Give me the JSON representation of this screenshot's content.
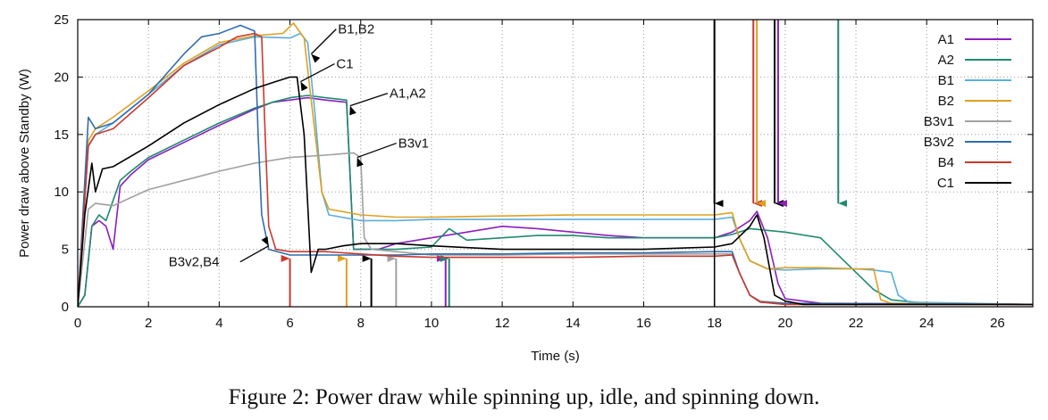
{
  "caption": "Figure 2: Power draw while spinning up, idle, and spinning down.",
  "chart_data": {
    "type": "line",
    "title": "",
    "xlabel": "Time (s)",
    "ylabel": "Power draw above Standby (W)",
    "xlim": [
      0,
      27
    ],
    "ylim": [
      0,
      25
    ],
    "xticks": [
      0,
      2,
      4,
      6,
      8,
      10,
      12,
      14,
      16,
      18,
      20,
      22,
      24,
      26
    ],
    "yticks": [
      0,
      5,
      10,
      15,
      20,
      25
    ],
    "grid": true,
    "legend_position": "top-right",
    "series": [
      {
        "name": "A1",
        "color": "#8b1fbf",
        "points": [
          [
            0,
            0
          ],
          [
            0.2,
            1
          ],
          [
            0.4,
            7
          ],
          [
            0.6,
            7.5
          ],
          [
            0.8,
            7
          ],
          [
            1.0,
            5
          ],
          [
            1.2,
            10.5
          ],
          [
            1.5,
            11.5
          ],
          [
            2,
            12.8
          ],
          [
            3,
            14.3
          ],
          [
            4,
            15.8
          ],
          [
            5,
            17.2
          ],
          [
            5.5,
            17.8
          ],
          [
            6,
            18
          ],
          [
            6.5,
            18.2
          ],
          [
            7,
            18
          ],
          [
            7.6,
            17.8
          ],
          [
            7.8,
            5
          ],
          [
            8.5,
            5
          ],
          [
            9,
            5.5
          ],
          [
            10,
            6
          ],
          [
            11,
            6.5
          ],
          [
            12,
            7
          ],
          [
            13,
            6.8
          ],
          [
            14,
            6.5
          ],
          [
            15,
            6.2
          ],
          [
            16,
            6
          ],
          [
            17,
            6
          ],
          [
            18,
            6
          ],
          [
            18.5,
            6.5
          ],
          [
            19,
            7.5
          ],
          [
            19.2,
            8.3
          ],
          [
            19.5,
            6
          ],
          [
            19.8,
            2
          ],
          [
            20,
            0.7
          ],
          [
            21,
            0.3
          ],
          [
            27,
            0.2
          ]
        ]
      },
      {
        "name": "A2",
        "color": "#1f8a6e",
        "points": [
          [
            0,
            0
          ],
          [
            0.2,
            1
          ],
          [
            0.4,
            7
          ],
          [
            0.6,
            8
          ],
          [
            0.8,
            7.5
          ],
          [
            1.2,
            11
          ],
          [
            1.5,
            11.8
          ],
          [
            2,
            13
          ],
          [
            3,
            14.5
          ],
          [
            4,
            16
          ],
          [
            5,
            17.3
          ],
          [
            5.5,
            17.8
          ],
          [
            6,
            18.2
          ],
          [
            6.5,
            18.4
          ],
          [
            7,
            18.2
          ],
          [
            7.6,
            18
          ],
          [
            7.8,
            5
          ],
          [
            8.5,
            5
          ],
          [
            9,
            5
          ],
          [
            10,
            5.2
          ],
          [
            10.5,
            6.8
          ],
          [
            11,
            5.8
          ],
          [
            12,
            6
          ],
          [
            13,
            6.2
          ],
          [
            14,
            6.2
          ],
          [
            15,
            6
          ],
          [
            16,
            6
          ],
          [
            17,
            6
          ],
          [
            18,
            6
          ],
          [
            18.5,
            6.3
          ],
          [
            19,
            6.8
          ],
          [
            20,
            6.5
          ],
          [
            21,
            6
          ],
          [
            22,
            3
          ],
          [
            22.5,
            1.5
          ],
          [
            23,
            0.6
          ],
          [
            24,
            0.3
          ],
          [
            27,
            0.2
          ]
        ]
      },
      {
        "name": "B1",
        "color": "#5aaedc",
        "points": [
          [
            0,
            0
          ],
          [
            0.3,
            14
          ],
          [
            0.5,
            15
          ],
          [
            1,
            16
          ],
          [
            2,
            18.5
          ],
          [
            3,
            21
          ],
          [
            4,
            22.8
          ],
          [
            5,
            23.5
          ],
          [
            6,
            23.4
          ],
          [
            6.3,
            23.8
          ],
          [
            6.5,
            23
          ],
          [
            6.7,
            17
          ],
          [
            6.9,
            10
          ],
          [
            7.1,
            8
          ],
          [
            8,
            7.5
          ],
          [
            9,
            7.5
          ],
          [
            10,
            7.6
          ],
          [
            12,
            7.6
          ],
          [
            14,
            7.6
          ],
          [
            16,
            7.6
          ],
          [
            18,
            7.6
          ],
          [
            18.5,
            7.8
          ],
          [
            18.7,
            6
          ],
          [
            19,
            4
          ],
          [
            19.5,
            3.3
          ],
          [
            20,
            3.2
          ],
          [
            21,
            3.3
          ],
          [
            22,
            3.3
          ],
          [
            22.5,
            3.2
          ],
          [
            23,
            3
          ],
          [
            23.2,
            1
          ],
          [
            23.5,
            0.4
          ],
          [
            27,
            0.2
          ]
        ]
      },
      {
        "name": "B2",
        "color": "#e0a020",
        "points": [
          [
            0,
            0
          ],
          [
            0.3,
            14.5
          ],
          [
            0.5,
            15.5
          ],
          [
            1,
            16.5
          ],
          [
            2,
            18.8
          ],
          [
            3,
            21.2
          ],
          [
            4,
            23
          ],
          [
            5,
            23.6
          ],
          [
            5.8,
            23.8
          ],
          [
            6.1,
            24.7
          ],
          [
            6.4,
            23.4
          ],
          [
            6.6,
            18
          ],
          [
            6.9,
            10
          ],
          [
            7.1,
            8.5
          ],
          [
            8,
            8
          ],
          [
            9,
            7.8
          ],
          [
            10,
            7.8
          ],
          [
            12,
            7.9
          ],
          [
            14,
            8
          ],
          [
            16,
            8
          ],
          [
            18,
            8
          ],
          [
            18.5,
            8.2
          ],
          [
            18.7,
            6
          ],
          [
            19,
            4
          ],
          [
            19.5,
            3.3
          ],
          [
            20,
            3.4
          ],
          [
            21,
            3.4
          ],
          [
            22,
            3.3
          ],
          [
            22.5,
            3.3
          ],
          [
            22.7,
            0.6
          ],
          [
            23,
            0.3
          ],
          [
            27,
            0.2
          ]
        ]
      },
      {
        "name": "B3v1",
        "color": "#a0a0a0",
        "points": [
          [
            0,
            0
          ],
          [
            0.3,
            8.5
          ],
          [
            0.5,
            9
          ],
          [
            1,
            8.8
          ],
          [
            1.5,
            9.5
          ],
          [
            2,
            10.2
          ],
          [
            3,
            11
          ],
          [
            4,
            11.8
          ],
          [
            5,
            12.5
          ],
          [
            6,
            13
          ],
          [
            7,
            13.2
          ],
          [
            7.8,
            13.4
          ],
          [
            8,
            13
          ],
          [
            8.1,
            6
          ],
          [
            8.3,
            5
          ],
          [
            9,
            4.8
          ],
          [
            10,
            4.5
          ],
          [
            12,
            4.5
          ],
          [
            14,
            4.6
          ],
          [
            16,
            4.6
          ],
          [
            18,
            4.6
          ],
          [
            18.5,
            4.6
          ],
          [
            18.7,
            3
          ],
          [
            19,
            1
          ],
          [
            19.3,
            0.5
          ],
          [
            20,
            0.3
          ],
          [
            27,
            0.2
          ]
        ]
      },
      {
        "name": "B3v2",
        "color": "#2f6db0",
        "points": [
          [
            0,
            0
          ],
          [
            0.3,
            16.5
          ],
          [
            0.5,
            15.5
          ],
          [
            1,
            16
          ],
          [
            2,
            18.5
          ],
          [
            3,
            22
          ],
          [
            3.5,
            23.5
          ],
          [
            4,
            23.8
          ],
          [
            4.6,
            24.5
          ],
          [
            5,
            24
          ],
          [
            5.1,
            15
          ],
          [
            5.2,
            8
          ],
          [
            5.4,
            5
          ],
          [
            6,
            4.5
          ],
          [
            7,
            4.5
          ],
          [
            8,
            4.5
          ],
          [
            9,
            4.5
          ],
          [
            10,
            4.6
          ],
          [
            12,
            4.6
          ],
          [
            14,
            4.7
          ],
          [
            16,
            4.7
          ],
          [
            18,
            4.8
          ],
          [
            18.5,
            4.8
          ],
          [
            18.7,
            3
          ],
          [
            19,
            1
          ],
          [
            19.3,
            0.4
          ],
          [
            20,
            0.3
          ],
          [
            27,
            0.2
          ]
        ]
      },
      {
        "name": "B4",
        "color": "#c83a2f",
        "points": [
          [
            0,
            0
          ],
          [
            0.3,
            14
          ],
          [
            0.5,
            15
          ],
          [
            1,
            15.5
          ],
          [
            2,
            18.2
          ],
          [
            3,
            21
          ],
          [
            4,
            22.6
          ],
          [
            4.5,
            23.5
          ],
          [
            5,
            23.8
          ],
          [
            5.2,
            23.5
          ],
          [
            5.3,
            15
          ],
          [
            5.4,
            7
          ],
          [
            5.6,
            5
          ],
          [
            6,
            4.8
          ],
          [
            7,
            4.8
          ],
          [
            8,
            4.6
          ],
          [
            9,
            4.4
          ],
          [
            10,
            4.3
          ],
          [
            12,
            4.3
          ],
          [
            14,
            4.3
          ],
          [
            16,
            4.4
          ],
          [
            18,
            4.4
          ],
          [
            18.5,
            4.5
          ],
          [
            18.7,
            3
          ],
          [
            19,
            1
          ],
          [
            19.3,
            0.4
          ],
          [
            20,
            0.2
          ],
          [
            27,
            0.2
          ]
        ]
      },
      {
        "name": "C1",
        "color": "#000000",
        "points": [
          [
            0,
            0
          ],
          [
            0.2,
            8
          ],
          [
            0.4,
            12.5
          ],
          [
            0.5,
            10
          ],
          [
            0.7,
            12
          ],
          [
            1,
            12.2
          ],
          [
            2,
            14
          ],
          [
            3,
            16
          ],
          [
            4,
            17.6
          ],
          [
            5,
            19
          ],
          [
            5.5,
            19.5
          ],
          [
            6,
            20
          ],
          [
            6.2,
            20
          ],
          [
            6.4,
            15
          ],
          [
            6.6,
            3
          ],
          [
            6.8,
            5
          ],
          [
            7,
            5
          ],
          [
            7.5,
            5.3
          ],
          [
            8,
            5.5
          ],
          [
            9,
            5.5
          ],
          [
            10,
            5.3
          ],
          [
            12,
            5
          ],
          [
            14,
            5
          ],
          [
            16,
            5
          ],
          [
            18,
            5.2
          ],
          [
            18.5,
            5.5
          ],
          [
            19,
            7
          ],
          [
            19.2,
            8
          ],
          [
            19.4,
            6
          ],
          [
            19.7,
            1
          ],
          [
            20,
            0.5
          ],
          [
            20.5,
            0.2
          ],
          [
            27,
            0.2
          ]
        ]
      }
    ],
    "annotations": [
      {
        "label": "B1,B2",
        "x": 6.6,
        "y": 22
      },
      {
        "label": "C1",
        "x": 6.3,
        "y": 19.6
      },
      {
        "label": "A1,A2",
        "x": 7.7,
        "y": 17.5
      },
      {
        "label": "B3v1",
        "x": 7.9,
        "y": 13
      },
      {
        "label": "B3v2,B4",
        "x": 5.4,
        "y": 5.3
      }
    ],
    "event_markers": [
      {
        "x": 6.0,
        "color": "#c83a2f",
        "direction": "up"
      },
      {
        "x": 7.6,
        "color": "#e0a020",
        "direction": "up"
      },
      {
        "x": 8.3,
        "color": "#000000",
        "direction": "up"
      },
      {
        "x": 9.0,
        "color": "#a0a0a0",
        "direction": "up"
      },
      {
        "x": 10.4,
        "color": "#8b1fbf",
        "direction": "up"
      },
      {
        "x": 10.5,
        "color": "#1f8a6e",
        "direction": "up"
      },
      {
        "x": 18.0,
        "color": "#000000",
        "direction": "down"
      },
      {
        "x": 19.1,
        "color": "#c83a2f",
        "direction": "down"
      },
      {
        "x": 19.2,
        "color": "#e0a020",
        "direction": "down"
      },
      {
        "x": 19.7,
        "color": "#000000",
        "direction": "down"
      },
      {
        "x": 19.8,
        "color": "#8b1fbf",
        "direction": "down"
      },
      {
        "x": 21.5,
        "color": "#1f8a6e",
        "direction": "down"
      }
    ]
  }
}
